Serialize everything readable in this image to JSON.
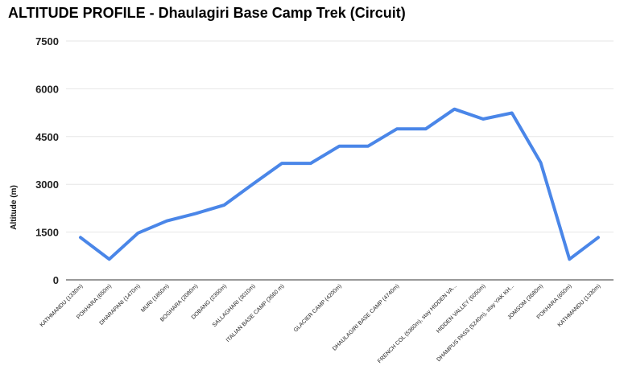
{
  "chart_data": {
    "type": "line",
    "title": "ALTITUDE PROFILE - Dhaulagiri Base Camp Trek (Circuit)",
    "xlabel": "",
    "ylabel": "Altitude (m)",
    "ylim": [
      0,
      7500
    ],
    "yticks": [
      "0",
      "1500",
      "3000",
      "4500",
      "6000",
      "7500"
    ],
    "ytick_values": [
      0,
      1500,
      3000,
      4500,
      6000,
      7500
    ],
    "grid": true,
    "legend": "none",
    "line_color": "#4a86e8",
    "x_labels": [
      {
        "index": 0,
        "text": "KATHMANDU (1330m)"
      },
      {
        "index": 1,
        "text": "POKHARA (650m)"
      },
      {
        "index": 2,
        "text": "DHARAPANI (1470m)"
      },
      {
        "index": 3,
        "text": "MURI (1850m)"
      },
      {
        "index": 4,
        "text": "BOGHARA (2080m)"
      },
      {
        "index": 5,
        "text": "DOBANG (2350m)"
      },
      {
        "index": 6,
        "text": "SALLAGHARI (3010m)"
      },
      {
        "index": 7,
        "text": "ITALIAN BASE CAMP (3660 m)"
      },
      {
        "index": 9,
        "text": "GLACIER CAMP (4200m)"
      },
      {
        "index": 11,
        "text": "DHAULAGIRI BASE CAMP (4740m)"
      },
      {
        "index": 13,
        "text": "FRENCH COL (5360m), stay HIDDEN VA..."
      },
      {
        "index": 14,
        "text": "HIDDEN VALLEY (5050m)"
      },
      {
        "index": 15,
        "text": "DHAMPUS PASS (5240m), stay YAK KH..."
      },
      {
        "index": 16,
        "text": "JOMSOM (3680m)"
      },
      {
        "index": 17,
        "text": "POKHARA (650m)"
      },
      {
        "index": 18,
        "text": "KATHMANDU (1330m)"
      }
    ],
    "values": [
      1330,
      650,
      1470,
      1850,
      2080,
      2350,
      3010,
      3660,
      3660,
      4200,
      4200,
      4740,
      4740,
      5360,
      5050,
      5240,
      3680,
      650,
      1330
    ]
  }
}
